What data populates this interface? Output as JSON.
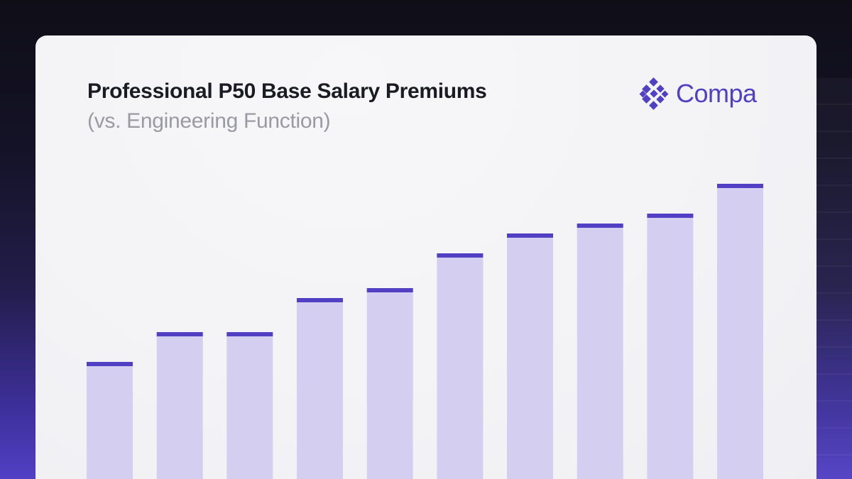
{
  "page": {
    "title": "Professional P50 Base Salary Premiums",
    "subtitle": "(vs. Engineering Function)"
  },
  "brand": {
    "name": "Compa",
    "logo_icon": "compa-logo-icon",
    "color": "#5140c4"
  },
  "colors": {
    "bar_fill": "#d4cff0",
    "bar_cap": "#5140c4"
  },
  "chart_data": {
    "type": "bar",
    "title": "Professional P50 Base Salary Premiums",
    "subtitle": "(vs. Engineering Function)",
    "xlabel": "",
    "ylabel": "",
    "categories": [
      "",
      "",
      "",
      "",
      "",
      "",
      "",
      "",
      "",
      ""
    ],
    "values": [
      180,
      222,
      222,
      270,
      284,
      333,
      361,
      375,
      389,
      431
    ],
    "ylim": [
      0,
      450
    ],
    "grid": false,
    "legend": "none"
  }
}
